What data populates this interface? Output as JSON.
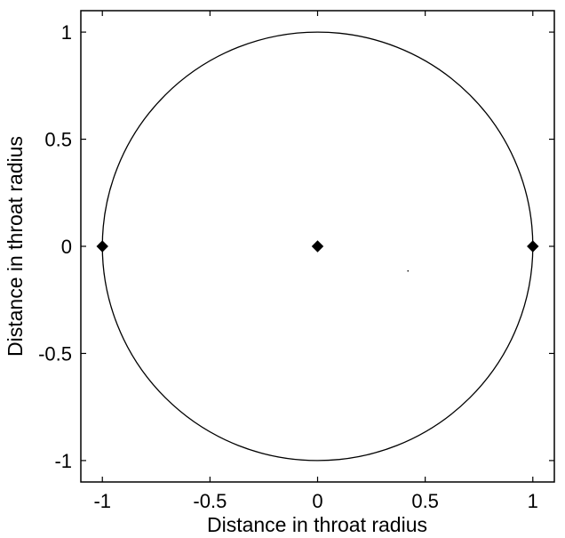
{
  "chart_data": {
    "type": "scatter",
    "title": "",
    "xlabel": "Distance in throat radius",
    "ylabel": "Distance in throat radius",
    "xlim": [
      -1.1,
      1.1
    ],
    "ylim": [
      -1.1,
      1.1
    ],
    "xticks": [
      -1,
      -0.5,
      0,
      0.5,
      1
    ],
    "yticks": [
      -1,
      -0.5,
      0,
      0.5,
      1
    ],
    "xtick_labels": [
      "-1",
      "-0.5",
      "0",
      "0.5",
      "1"
    ],
    "ytick_labels": [
      "-1",
      "-0.5",
      "0",
      "0.5",
      "1"
    ],
    "grid": false,
    "legend": "none",
    "circle": {
      "center": [
        0,
        0
      ],
      "radius": 1
    },
    "points": [
      {
        "x": -1,
        "y": 0
      },
      {
        "x": 0,
        "y": 0
      },
      {
        "x": 1,
        "y": 0
      }
    ],
    "stray_mark": {
      "x": 0.42,
      "y": -0.115
    },
    "colors": {
      "ink": "#000000",
      "background": "#ffffff"
    }
  }
}
